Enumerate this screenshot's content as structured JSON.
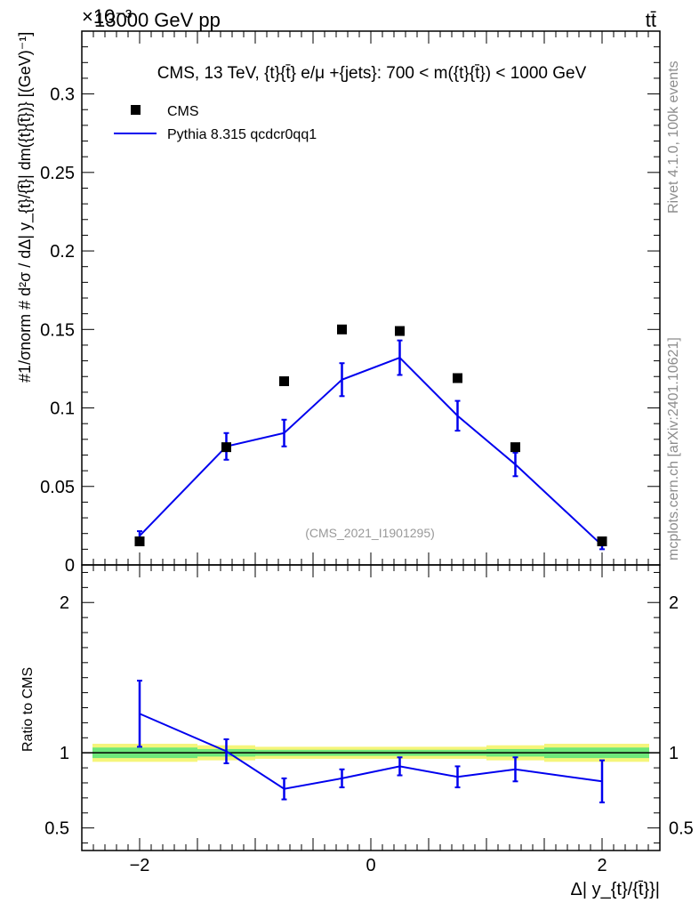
{
  "header": {
    "energy": "13000 GeV pp",
    "process": "tt̄",
    "exponent": "×10⁻³"
  },
  "side_text": {
    "rivet": "Rivet 4.1.0,  100k events",
    "mcplots": "mcplots.cern.ch [arXiv:2401.10621]"
  },
  "chart_data": {
    "type": "line",
    "title": "CMS, 13 TeV, {t}{t̄} e/μ +{jets}: 700 < m({t}{t̄}) < 1000 GeV",
    "watermark": "(CMS_2021_I1901295)",
    "xlabel": "Δ| y_{t}/{t̄}}|",
    "ylabel_main": "#1/σnorm # d²σ / dΔ| y_{t}/{t̄}| dm({t}{t̄})} [(GeV)⁻¹]",
    "ylabel_ratio": "Ratio to CMS",
    "xlim": [
      -2.5,
      2.5
    ],
    "ylim": [
      0,
      0.34
    ],
    "ratio_ylim": [
      0.35,
      2.25
    ],
    "x_ticks": [
      -2,
      0,
      2
    ],
    "x_tick_labels": [
      "−2",
      "0",
      "2"
    ],
    "y_ticks": [
      0,
      0.05,
      0.1,
      0.15,
      0.2,
      0.25,
      0.3
    ],
    "y_tick_labels": [
      "0",
      "0.05",
      "0.1",
      "0.15",
      "0.2",
      "0.25",
      "0.3"
    ],
    "ratio_ticks": [
      0.5,
      1,
      2
    ],
    "ratio_tick_labels": [
      "0.5",
      "1",
      "2"
    ],
    "legend": [
      "CMS",
      "Pythia 8.315 qcdcr0qq1"
    ],
    "x": [
      -2,
      -1.25,
      -0.75,
      -0.25,
      0.25,
      0.75,
      1.25,
      2
    ],
    "bin_edges": [
      -2.5,
      -1.5,
      -1,
      -0.5,
      0,
      0.5,
      1,
      1.5,
      2.5
    ],
    "series": [
      {
        "name": "CMS",
        "color": "#000000",
        "values": [
          0.015,
          0.075,
          0.117,
          0.15,
          0.149,
          0.119,
          0.075,
          0.015
        ]
      },
      {
        "name": "Pythia 8.315 qcdcr0qq1",
        "color": "#0000ee",
        "values": [
          0.0185,
          0.0755,
          0.084,
          0.118,
          0.132,
          0.095,
          0.064,
          0.0125
        ],
        "errors": [
          0.003,
          0.0085,
          0.0085,
          0.0105,
          0.011,
          0.0095,
          0.0075,
          0.0025
        ]
      }
    ],
    "ratio": {
      "values": [
        1.26,
        1.01,
        0.76,
        0.83,
        0.91,
        0.84,
        0.89,
        0.81
      ],
      "errors": [
        0.22,
        0.08,
        0.07,
        0.06,
        0.06,
        0.07,
        0.08,
        0.14
      ],
      "band_green": [
        0.035,
        0.025,
        0.02,
        0.02,
        0.02,
        0.02,
        0.025,
        0.035
      ],
      "band_yellow": [
        0.06,
        0.05,
        0.04,
        0.04,
        0.04,
        0.04,
        0.05,
        0.06
      ],
      "band_green_color": "#6ee77a",
      "band_yellow_color": "#f5f57a"
    }
  }
}
